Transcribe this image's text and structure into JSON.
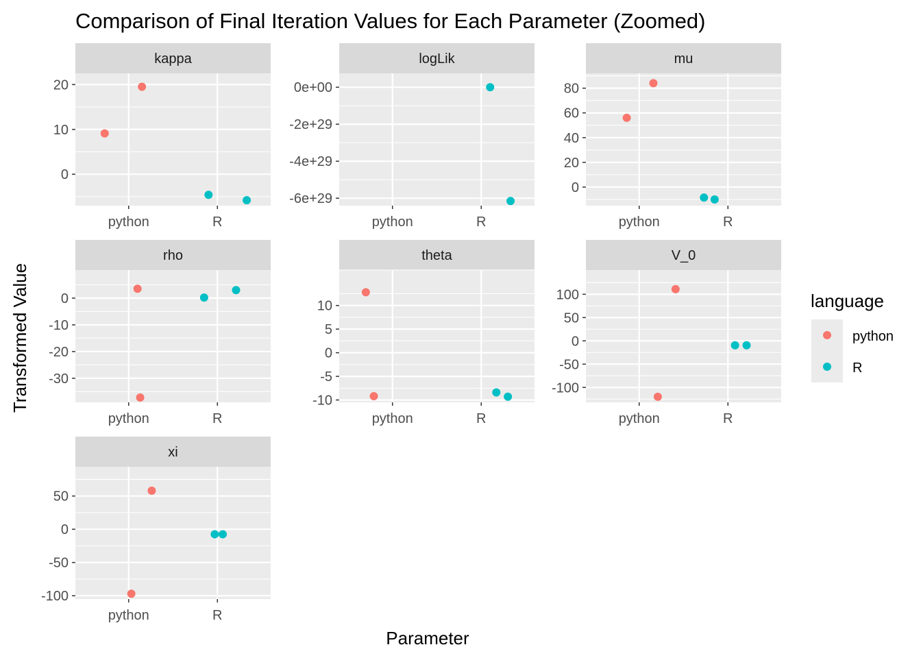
{
  "chart_data": {
    "type": "scatter",
    "title": "Comparison of Final Iteration Values for Each Parameter (Zoomed)",
    "xlabel": "Parameter",
    "ylabel": "Transformed Value",
    "categories": [
      "python",
      "R"
    ],
    "legend": {
      "title": "language",
      "position": "right",
      "entries": [
        {
          "name": "python",
          "color": "#F8766D"
        },
        {
          "name": "R",
          "color": "#00BFC4"
        }
      ]
    },
    "grid": true,
    "facets": [
      {
        "name": "kappa",
        "ylim": [
          -7,
          22.5
        ],
        "yticks": [
          {
            "v": 0,
            "label": "0"
          },
          {
            "v": 10,
            "label": "10"
          },
          {
            "v": 20,
            "label": "20"
          }
        ],
        "points": [
          {
            "lang": "python",
            "x": 0.73,
            "y": 9.1
          },
          {
            "lang": "python",
            "x": 1.15,
            "y": 19.5
          },
          {
            "lang": "R",
            "x": 1.9,
            "y": -4.6
          },
          {
            "lang": "R",
            "x": 2.33,
            "y": -5.8
          }
        ]
      },
      {
        "name": "logLik",
        "ylim": [
          -6.4e+29,
          7.5e+28
        ],
        "yticks": [
          {
            "v": 0,
            "label": "0e+00"
          },
          {
            "v": -2e+29,
            "label": "-2e+29"
          },
          {
            "v": -4e+29,
            "label": "-4e+29"
          },
          {
            "v": -6e+29,
            "label": "-6e+29"
          }
        ],
        "points": [
          {
            "lang": "R",
            "x": 2.1,
            "y": 0
          },
          {
            "lang": "R",
            "x": 2.33,
            "y": -6.15e+29
          }
        ]
      },
      {
        "name": "mu",
        "ylim": [
          -15,
          92
        ],
        "yticks": [
          {
            "v": 0,
            "label": "0"
          },
          {
            "v": 20,
            "label": "20"
          },
          {
            "v": 40,
            "label": "40"
          },
          {
            "v": 60,
            "label": "60"
          },
          {
            "v": 80,
            "label": "80"
          }
        ],
        "points": [
          {
            "lang": "python",
            "x": 0.86,
            "y": 56
          },
          {
            "lang": "python",
            "x": 1.16,
            "y": 84
          },
          {
            "lang": "R",
            "x": 1.73,
            "y": -8.5
          },
          {
            "lang": "R",
            "x": 1.85,
            "y": -10
          }
        ]
      },
      {
        "name": "rho",
        "ylim": [
          -39,
          10.5
        ],
        "yticks": [
          {
            "v": -30,
            "label": "-30"
          },
          {
            "v": -20,
            "label": "-20"
          },
          {
            "v": -10,
            "label": "-10"
          },
          {
            "v": 0,
            "label": "0"
          }
        ],
        "points": [
          {
            "lang": "python",
            "x": 1.1,
            "y": 3.5
          },
          {
            "lang": "python",
            "x": 1.13,
            "y": -37.2
          },
          {
            "lang": "R",
            "x": 1.85,
            "y": 0.2
          },
          {
            "lang": "R",
            "x": 2.21,
            "y": 3.0
          }
        ]
      },
      {
        "name": "theta",
        "ylim": [
          -10.5,
          17.5
        ],
        "yticks": [
          {
            "v": -10,
            "label": "-10"
          },
          {
            "v": -5,
            "label": "-5"
          },
          {
            "v": 0,
            "label": "0"
          },
          {
            "v": 5,
            "label": "5"
          },
          {
            "v": 10,
            "label": "10"
          }
        ],
        "points": [
          {
            "lang": "python",
            "x": 0.7,
            "y": 12.8
          },
          {
            "lang": "python",
            "x": 0.79,
            "y": -9.2
          },
          {
            "lang": "R",
            "x": 2.17,
            "y": -8.4
          },
          {
            "lang": "R",
            "x": 2.3,
            "y": -9.3
          }
        ]
      },
      {
        "name": "V_0",
        "ylim": [
          -132,
          152
        ],
        "yticks": [
          {
            "v": -100,
            "label": "-100"
          },
          {
            "v": -50,
            "label": "-50"
          },
          {
            "v": 0,
            "label": "0"
          },
          {
            "v": 50,
            "label": "50"
          },
          {
            "v": 100,
            "label": "100"
          }
        ],
        "points": [
          {
            "lang": "python",
            "x": 1.21,
            "y": -120
          },
          {
            "lang": "python",
            "x": 1.41,
            "y": 111
          },
          {
            "lang": "R",
            "x": 2.08,
            "y": -9.5
          },
          {
            "lang": "R",
            "x": 2.21,
            "y": -9.5
          }
        ]
      },
      {
        "name": "xi",
        "ylim": [
          -105,
          94
        ],
        "yticks": [
          {
            "v": -100,
            "label": "-100"
          },
          {
            "v": -50,
            "label": "-50"
          },
          {
            "v": 0,
            "label": "0"
          },
          {
            "v": 50,
            "label": "50"
          }
        ],
        "points": [
          {
            "lang": "python",
            "x": 1.03,
            "y": -97
          },
          {
            "lang": "python",
            "x": 1.26,
            "y": 58
          },
          {
            "lang": "R",
            "x": 1.97,
            "y": -7.5
          },
          {
            "lang": "R",
            "x": 2.06,
            "y": -7.5
          }
        ]
      }
    ]
  }
}
